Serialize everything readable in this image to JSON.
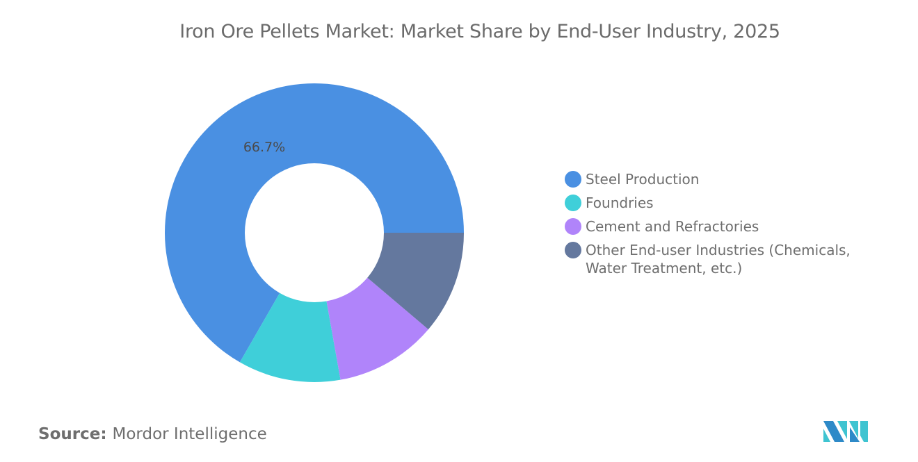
{
  "chart_data": {
    "type": "pie",
    "variant": "donut",
    "title": "Iron Ore Pellets Market: Market Share by End-User Industry, 2025",
    "categories": [
      "Steel Production",
      "Foundries",
      "Cement and Refractories",
      "Other End-user Industries (Chemicals, Water Treatment, etc.)"
    ],
    "values": [
      66.7,
      11.1,
      11.0,
      11.2
    ],
    "unit": "%",
    "data_labels": [
      {
        "category": "Steel Production",
        "text": "66.7%"
      }
    ],
    "colors": [
      "#4a90e2",
      "#3fcfd9",
      "#b084fa",
      "#64789e"
    ],
    "legend_position": "right"
  },
  "source": {
    "label": "Source:",
    "value": "Mordor Intelligence"
  },
  "logo_text": "Mordor Intelligence"
}
